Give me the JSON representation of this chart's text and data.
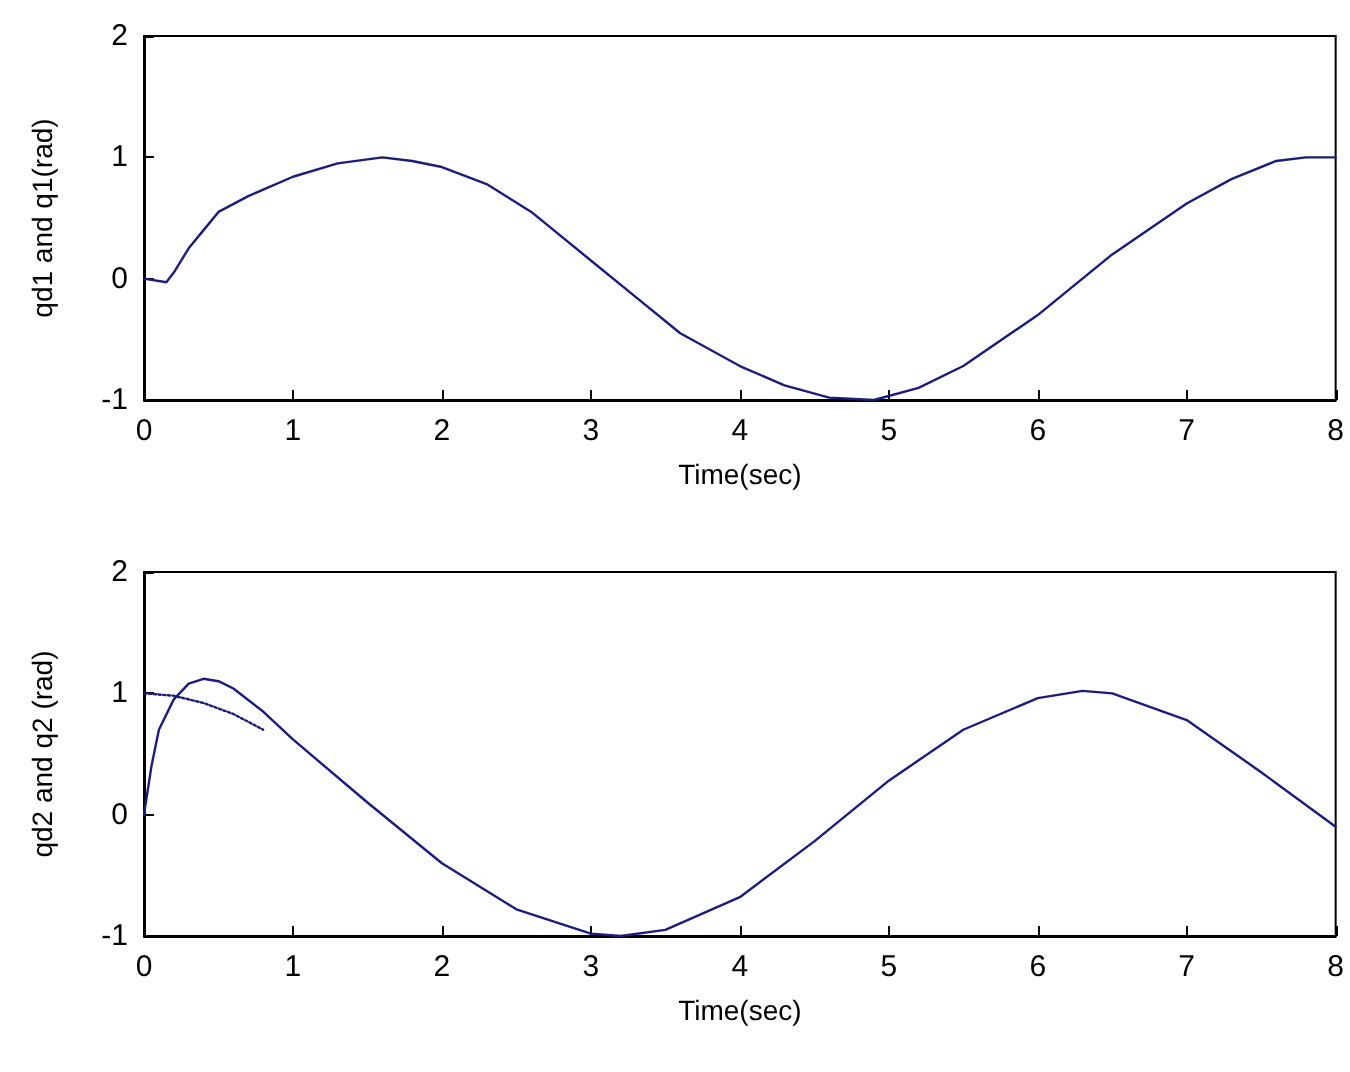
{
  "chart_data": [
    {
      "type": "line",
      "xlabel": "Time(sec)",
      "ylabel": "qd1 and q1(rad)",
      "xlim": [
        0,
        8
      ],
      "xticks": [
        0,
        1,
        2,
        3,
        4,
        5,
        6,
        7,
        8
      ],
      "ylim": [
        -1,
        2
      ],
      "yticks": [
        -1,
        0,
        1,
        2
      ],
      "series": [
        {
          "color": "#1c1c7a",
          "line_style": "solid",
          "x": [
            0,
            0.15,
            0.2,
            0.3,
            0.4,
            0.5,
            0.7,
            1,
            1.3,
            1.6,
            1.8,
            2,
            2.3,
            2.6,
            3,
            3.3,
            3.6,
            4,
            4.3,
            4.6,
            4.9,
            5.2,
            5.5,
            6,
            6.5,
            7,
            7.3,
            7.6,
            7.8,
            8
          ],
          "values": [
            0,
            -0.03,
            0.05,
            0.25,
            0.4,
            0.55,
            0.68,
            0.84,
            0.95,
            1,
            0.97,
            0.92,
            0.78,
            0.55,
            0.15,
            -0.15,
            -0.45,
            -0.72,
            -0.88,
            -0.98,
            -1,
            -0.9,
            -0.72,
            -0.3,
            0.2,
            0.62,
            0.82,
            0.97,
            1,
            1
          ]
        }
      ]
    },
    {
      "type": "line",
      "xlabel": "Time(sec)",
      "ylabel": "qd2 and q2 (rad)",
      "xlim": [
        0,
        8
      ],
      "xticks": [
        0,
        1,
        2,
        3,
        4,
        5,
        6,
        7,
        8
      ],
      "ylim": [
        -1,
        2
      ],
      "yticks": [
        -1,
        0,
        1,
        2
      ],
      "series": [
        {
          "color": "#1c1c7a",
          "line_style": "dotted",
          "x": [
            0,
            0.2,
            0.4,
            0.6,
            0.8
          ],
          "values": [
            1,
            0.98,
            0.92,
            0.83,
            0.7
          ]
        },
        {
          "color": "#1c1c7a",
          "line_style": "solid",
          "x": [
            0,
            0.05,
            0.1,
            0.2,
            0.3,
            0.4,
            0.5,
            0.6,
            0.8,
            1,
            1.5,
            2,
            2.5,
            3,
            3.2,
            3.5,
            4,
            4.5,
            5,
            5.5,
            6,
            6.3,
            6.5,
            7,
            7.5,
            8
          ],
          "values": [
            0,
            0.4,
            0.7,
            0.95,
            1.08,
            1.12,
            1.1,
            1.04,
            0.85,
            0.62,
            0.1,
            -0.4,
            -0.78,
            -0.98,
            -1,
            -0.95,
            -0.68,
            -0.22,
            0.28,
            0.7,
            0.96,
            1.02,
            1,
            0.78,
            0.35,
            -0.1
          ]
        }
      ]
    }
  ]
}
